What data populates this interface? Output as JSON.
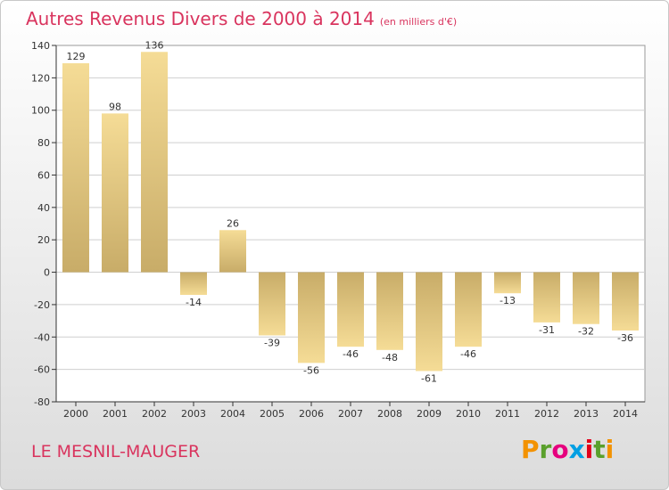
{
  "chart_data": {
    "type": "bar",
    "title": "Autres Revenus Divers de 2000 à 2014",
    "subtitle": "(en milliers d'€)",
    "categories": [
      "2000",
      "2001",
      "2002",
      "2003",
      "2004",
      "2005",
      "2006",
      "2007",
      "2008",
      "2009",
      "2010",
      "2011",
      "2012",
      "2013",
      "2014"
    ],
    "values": [
      129,
      98,
      136,
      -14,
      26,
      -39,
      -56,
      -46,
      -48,
      -61,
      -46,
      -13,
      -31,
      -32,
      -36
    ],
    "value_labels": [
      "129",
      "98",
      "136",
      "-14",
      "26",
      "-39",
      "-56",
      "-46",
      "-48",
      "-61",
      "-46",
      "-13",
      "-31",
      "-32",
      "-36"
    ],
    "ylim": [
      -80,
      140
    ],
    "yticks": [
      -80,
      -60,
      -40,
      -20,
      0,
      20,
      40,
      60,
      80,
      100,
      120,
      140
    ],
    "ytick_labels": [
      "-80",
      "-60",
      "-40",
      "-20",
      "0",
      "20",
      "40",
      "60",
      "80",
      "100",
      "120",
      "140"
    ],
    "grid": true,
    "bar_color_light": "#f5dc96",
    "bar_color_dark": "#c8ac68"
  },
  "footer": {
    "commune": "LE MESNIL-MAUGER",
    "logo_letters": [
      "P",
      "r",
      "o",
      "x",
      "i",
      "t",
      "i"
    ],
    "logo_colors": [
      "#f39200",
      "#5aa02c",
      "#e6007e",
      "#009fe3",
      "#e2001a",
      "#5aa02c",
      "#f39200"
    ]
  }
}
